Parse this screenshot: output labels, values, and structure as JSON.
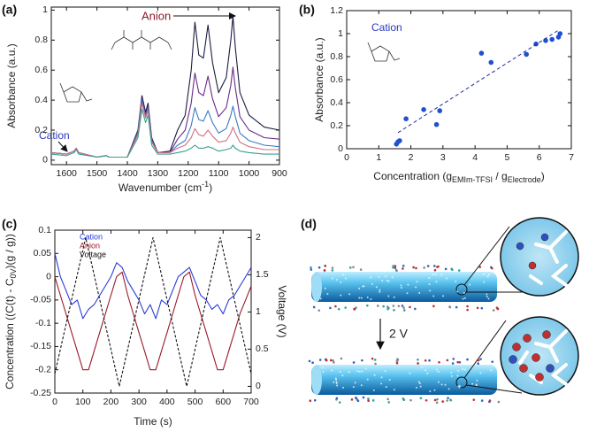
{
  "chart_data": [
    {
      "type": "line",
      "panel_label": "(a)",
      "x_label": [
        "Wavenumber (cm",
        "-1",
        ")"
      ],
      "x_label_style": "sup",
      "y_label": "Absorbance (a.u.)",
      "annotations": [
        "Anion",
        "Cation"
      ],
      "x": [
        1650,
        1600,
        1575,
        1568,
        1560,
        1500,
        1470,
        1460,
        1400,
        1365,
        1352,
        1340,
        1332,
        1320,
        1300,
        1260,
        1235,
        1210,
        1190,
        1178,
        1165,
        1150,
        1135,
        1120,
        1100,
        1075,
        1060,
        1053,
        1045,
        1030,
        1000,
        950,
        900
      ],
      "series": [
        {
          "color": "#1c1c40",
          "values": [
            0.05,
            0.04,
            0.06,
            0.08,
            0.05,
            0.02,
            0.03,
            0.02,
            0.02,
            0.2,
            0.43,
            0.32,
            0.38,
            0.15,
            0.05,
            0.06,
            0.2,
            0.3,
            0.6,
            0.92,
            0.7,
            0.68,
            0.9,
            0.65,
            0.45,
            0.55,
            0.8,
            0.96,
            0.75,
            0.45,
            0.3,
            0.22,
            0.2
          ]
        },
        {
          "color": "#6a2a8a",
          "values": [
            0.05,
            0.04,
            0.06,
            0.08,
            0.05,
            0.02,
            0.03,
            0.02,
            0.02,
            0.19,
            0.41,
            0.3,
            0.36,
            0.14,
            0.05,
            0.05,
            0.14,
            0.2,
            0.38,
            0.58,
            0.45,
            0.43,
            0.56,
            0.41,
            0.29,
            0.35,
            0.5,
            0.62,
            0.48,
            0.29,
            0.2,
            0.15,
            0.14
          ]
        },
        {
          "color": "#3a7ac8",
          "values": [
            0.05,
            0.04,
            0.06,
            0.08,
            0.05,
            0.02,
            0.03,
            0.02,
            0.02,
            0.18,
            0.4,
            0.29,
            0.35,
            0.13,
            0.05,
            0.05,
            0.1,
            0.13,
            0.23,
            0.35,
            0.27,
            0.26,
            0.33,
            0.25,
            0.18,
            0.21,
            0.3,
            0.36,
            0.29,
            0.18,
            0.13,
            0.1,
            0.09
          ]
        },
        {
          "color": "#d07080",
          "values": [
            0.05,
            0.04,
            0.06,
            0.08,
            0.05,
            0.02,
            0.03,
            0.02,
            0.02,
            0.17,
            0.38,
            0.28,
            0.33,
            0.12,
            0.05,
            0.05,
            0.08,
            0.1,
            0.15,
            0.21,
            0.17,
            0.16,
            0.2,
            0.16,
            0.12,
            0.13,
            0.18,
            0.22,
            0.18,
            0.12,
            0.09,
            0.07,
            0.07
          ]
        },
        {
          "color": "#3aa090",
          "values": [
            0.04,
            0.03,
            0.05,
            0.07,
            0.04,
            0.02,
            0.03,
            0.02,
            0.02,
            0.15,
            0.34,
            0.25,
            0.3,
            0.1,
            0.04,
            0.04,
            0.05,
            0.06,
            0.08,
            0.1,
            0.08,
            0.08,
            0.09,
            0.08,
            0.06,
            0.07,
            0.08,
            0.1,
            0.08,
            0.06,
            0.05,
            0.04,
            0.04
          ]
        }
      ],
      "xlim": [
        1650,
        900
      ],
      "xticks": [
        1600,
        1500,
        1400,
        1300,
        1200,
        1100,
        1000,
        900
      ],
      "ylim": [
        -0.03,
        1.02
      ],
      "yticks": [
        0,
        0.2,
        0.4,
        0.6,
        0.8,
        1
      ]
    },
    {
      "type": "scatter",
      "panel_label": "(b)",
      "x_label": [
        "Concentration (g",
        "EMIm-TFSI",
        " / g",
        "Electrode",
        ")"
      ],
      "x_label_style": "sub",
      "y_label": "Absorbance (a.u.)",
      "annotations": [
        "Cation"
      ],
      "x": [
        1.55,
        1.6,
        1.65,
        1.85,
        2.4,
        2.8,
        2.9,
        4.2,
        4.5,
        5.6,
        5.9,
        6.2,
        6.4,
        6.6,
        6.65
      ],
      "series": [
        {
          "color": "#2050d0",
          "values": [
            0.04,
            0.06,
            0.07,
            0.26,
            0.34,
            0.21,
            0.33,
            0.83,
            0.75,
            0.82,
            0.91,
            0.94,
            0.95,
            0.97,
            1.0
          ]
        }
      ],
      "fit": {
        "x": [
          1.6,
          6.6
        ],
        "y": [
          0.14,
          1.03
        ],
        "color": "#1a2a9a"
      },
      "xlim": [
        0,
        7
      ],
      "xticks": [
        0,
        1,
        2,
        3,
        4,
        5,
        6,
        7
      ],
      "ylim": [
        0,
        1.2
      ],
      "yticks": [
        0,
        0.2,
        0.4,
        0.6,
        0.8,
        1,
        1.2
      ]
    },
    {
      "type": "line",
      "panel_label": "(c)",
      "x_label": "Time (s)",
      "y_label": [
        "Concentration ((C(t) - C",
        "0V",
        ")(g / g))"
      ],
      "y_label_style": "sub",
      "y2_label": "Voltage (V)",
      "legend": "upper left",
      "x": [
        0,
        20,
        40,
        60,
        80,
        100,
        120,
        140,
        160,
        180,
        200,
        220,
        240,
        260,
        280,
        300,
        320,
        340,
        360,
        380,
        400,
        420,
        440,
        460,
        480,
        500,
        520,
        540,
        560,
        580,
        600,
        620,
        640,
        660,
        680,
        700
      ],
      "series": [
        {
          "name": "Cation",
          "color": "#2a3ad8",
          "values": [
            0.05,
            0.0,
            -0.03,
            -0.06,
            -0.05,
            -0.09,
            -0.07,
            -0.06,
            -0.04,
            -0.02,
            0.0,
            0.03,
            0.02,
            -0.01,
            -0.03,
            -0.05,
            -0.08,
            -0.06,
            -0.09,
            -0.05,
            -0.06,
            -0.03,
            0.0,
            0.01,
            0.02,
            -0.01,
            -0.04,
            -0.05,
            -0.07,
            -0.06,
            -0.08,
            -0.05,
            -0.04,
            -0.02,
            0.0,
            0.02
          ]
        },
        {
          "name": "Anion",
          "color": "#9a1a2a",
          "values": [
            0.0,
            -0.04,
            -0.08,
            -0.12,
            -0.16,
            -0.2,
            -0.2,
            -0.16,
            -0.12,
            -0.08,
            -0.04,
            0.0,
            0.01,
            -0.04,
            -0.08,
            -0.12,
            -0.16,
            -0.2,
            -0.2,
            -0.16,
            -0.12,
            -0.08,
            -0.04,
            0.0,
            0.01,
            -0.04,
            -0.08,
            -0.12,
            -0.16,
            -0.2,
            -0.2,
            -0.16,
            -0.12,
            -0.08,
            -0.05,
            -0.02
          ]
        },
        {
          "name": "Voltage",
          "color": "#111111",
          "axis": "y2",
          "dashed": true,
          "x": [
            0,
            110,
            230,
            350,
            470,
            590,
            700
          ],
          "values": [
            0.17,
            2,
            0,
            2,
            0,
            2,
            0.17
          ]
        }
      ],
      "xlim": [
        0,
        700
      ],
      "xticks": [
        0,
        100,
        200,
        300,
        400,
        500,
        600,
        700
      ],
      "ylim": [
        -0.25,
        0.1
      ],
      "yticks": [
        -0.25,
        -0.2,
        -0.15,
        -0.1,
        -0.05,
        0,
        0.05,
        0.1
      ],
      "y2lim": [
        -0.09,
        2.1
      ],
      "y2ticks": [
        0,
        0.5,
        1,
        1.5,
        2
      ]
    }
  ],
  "diagram": {
    "label": "(d)",
    "arrow_label": "2 V"
  }
}
